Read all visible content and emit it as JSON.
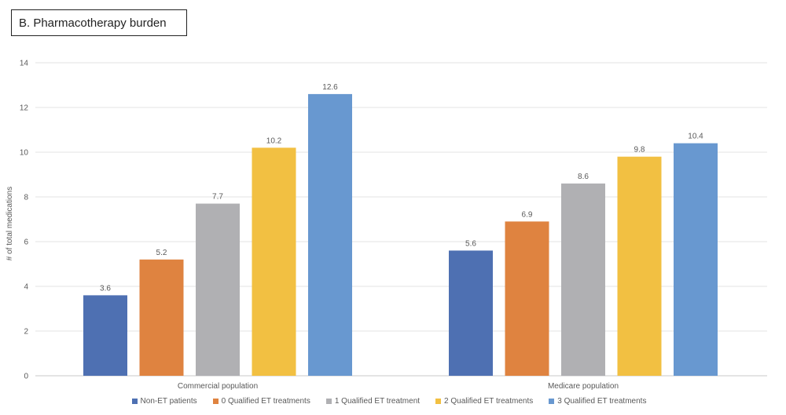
{
  "chart_data": {
    "type": "bar",
    "title": "B. Pharmacotherapy burden",
    "ylabel": "# of total medications",
    "xlabel": "",
    "ylim": [
      0,
      14
    ],
    "yticks": [
      0,
      2,
      4,
      6,
      8,
      10,
      12,
      14
    ],
    "grid": true,
    "legend_position": "bottom",
    "categories": [
      "Commercial population",
      "Medicare population"
    ],
    "series": [
      {
        "name": "Non-ET patients",
        "color": "#4e70b2",
        "values": [
          3.6,
          5.6
        ],
        "labels": [
          "3.6",
          "5.6"
        ]
      },
      {
        "name": "0 Qualified ET treatments",
        "color": "#df8340",
        "values": [
          5.2,
          6.9
        ],
        "labels": [
          "5.2",
          "6.9"
        ]
      },
      {
        "name": "1 Qualified ET treatment",
        "color": "#b0b0b3",
        "values": [
          7.7,
          8.6
        ],
        "labels": [
          "7.7",
          "8.6"
        ]
      },
      {
        "name": "2 Qualified ET treatments",
        "color": "#f2c042",
        "values": [
          10.2,
          9.8
        ],
        "labels": [
          "10.2",
          "9.8"
        ]
      },
      {
        "name": "3 Qualified ET treatments",
        "color": "#6898d0",
        "values": [
          12.6,
          10.4
        ],
        "labels": [
          "12.6",
          "10.4"
        ]
      }
    ]
  }
}
